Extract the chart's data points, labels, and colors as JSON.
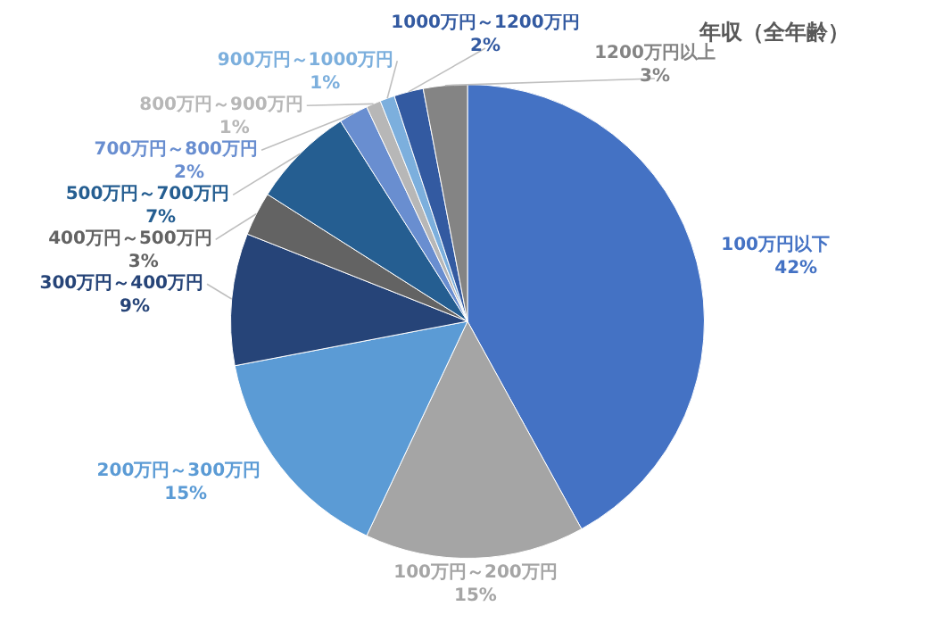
{
  "chart_data": {
    "type": "pie",
    "title": "年収（全年齢）",
    "categories": [
      "100万円以下",
      "100万円～200万円",
      "200万円～300万円",
      "300万円～400万円",
      "400万円～500万円",
      "500万円～700万円",
      "700万円～800万円",
      "800万円～900万円",
      "900万円～1000万円",
      "1000万円～1200万円",
      "1200万円以上"
    ],
    "values": [
      42,
      15,
      15,
      9,
      3,
      7,
      2,
      1,
      1,
      2,
      3
    ],
    "colors": [
      "#4472c4",
      "#a5a5a5",
      "#5b9bd5",
      "#264478",
      "#636363",
      "#255e91",
      "#698ed0",
      "#b7b7b7",
      "#7cafdd",
      "#335aa1",
      "#848484"
    ],
    "value_labels": [
      "42%",
      "15%",
      "15%",
      "9%",
      "3%",
      "7%",
      "2%",
      "1%",
      "1%",
      "2%",
      "3%"
    ],
    "legend": false
  }
}
